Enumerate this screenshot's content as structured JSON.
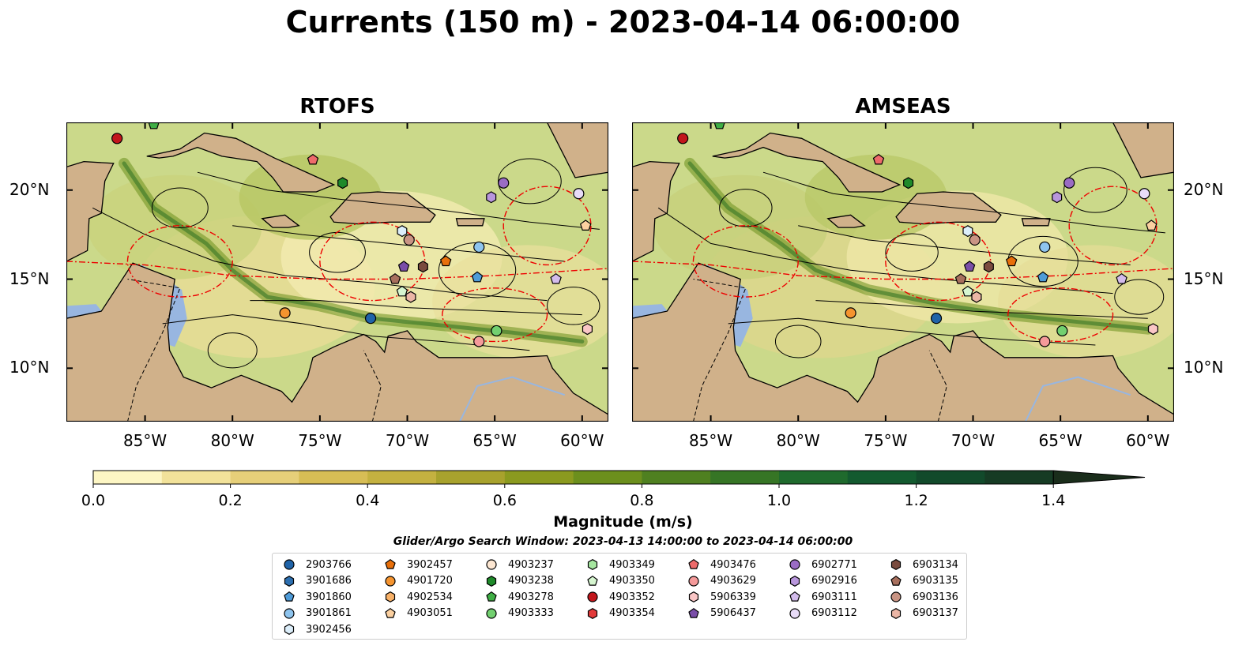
{
  "title": "Currents (150 m) - 2023-04-14 06:00:00",
  "panels": [
    {
      "title": "RTOFS"
    },
    {
      "title": "AMSEAS"
    }
  ],
  "axes": {
    "x_ticks": [
      "85°W",
      "80°W",
      "75°W",
      "70°W",
      "65°W",
      "60°W"
    ],
    "x_tick_values": [
      -85,
      -80,
      -75,
      -70,
      -65,
      -60
    ],
    "y_ticks": [
      "20°N",
      "15°N",
      "10°N"
    ],
    "y_tick_values": [
      20,
      15,
      10
    ],
    "xlim": [
      -89.5,
      -58.5
    ],
    "ylim": [
      7,
      23.8
    ]
  },
  "colorbar": {
    "label": "Magnitude (m/s)",
    "ticks": [
      "0.0",
      "0.2",
      "0.4",
      "0.6",
      "0.8",
      "1.0",
      "1.2",
      "1.4"
    ],
    "tick_values": [
      0.0,
      0.2,
      0.4,
      0.6,
      0.8,
      1.0,
      1.2,
      1.4
    ],
    "range": [
      0,
      1.5
    ],
    "extend": "max",
    "colors": [
      "#fdf6c4",
      "#f2e29a",
      "#e6cf79",
      "#d7bd55",
      "#c4b140",
      "#a8a22d",
      "#8b9a1f",
      "#6c8f1d",
      "#4f8020",
      "#367525",
      "#1f6a2d",
      "#135a2f",
      "#124a2b",
      "#163b24",
      "#1a2d1b"
    ]
  },
  "search_window": "Glider/Argo Search Window: 2023-04-13 14:00:00 to 2023-04-14 06:00:00",
  "legend": [
    {
      "id": "2903766",
      "marker": "circle",
      "color": "#1f63a8"
    },
    {
      "id": "3901686",
      "marker": "hexagon",
      "color": "#2c6fb0"
    },
    {
      "id": "3901860",
      "marker": "pentagon",
      "color": "#4e9bd8"
    },
    {
      "id": "3901861",
      "marker": "circle",
      "color": "#8ec4ee"
    },
    {
      "id": "3902456",
      "marker": "hexagon",
      "color": "#dceefa"
    },
    {
      "id": "3902457",
      "marker": "pentagon",
      "color": "#e86f0a"
    },
    {
      "id": "4901720",
      "marker": "circle",
      "color": "#f5942f"
    },
    {
      "id": "4902534",
      "marker": "hexagon",
      "color": "#f8b168"
    },
    {
      "id": "4903051",
      "marker": "pentagon",
      "color": "#fbd0a0"
    },
    {
      "id": "4903237",
      "marker": "circle",
      "color": "#fde7d2"
    },
    {
      "id": "4903238",
      "marker": "hexagon",
      "color": "#1e8a2a"
    },
    {
      "id": "4903278",
      "marker": "pentagon",
      "color": "#3fae45"
    },
    {
      "id": "4903333",
      "marker": "circle",
      "color": "#72d070"
    },
    {
      "id": "4903349",
      "marker": "hexagon",
      "color": "#a6e6a0"
    },
    {
      "id": "4903350",
      "marker": "pentagon",
      "color": "#d6f6d0"
    },
    {
      "id": "4903352",
      "marker": "circle",
      "color": "#c2161c"
    },
    {
      "id": "4903354",
      "marker": "hexagon",
      "color": "#e23a3a"
    },
    {
      "id": "4903476",
      "marker": "pentagon",
      "color": "#ee6b6b"
    },
    {
      "id": "4903629",
      "marker": "circle",
      "color": "#f59a9a"
    },
    {
      "id": "5906339",
      "marker": "hexagon",
      "color": "#fac6c6"
    },
    {
      "id": "5906437",
      "marker": "pentagon",
      "color": "#7a4ea8"
    },
    {
      "id": "6902771",
      "marker": "circle",
      "color": "#9a6cc4"
    },
    {
      "id": "6902916",
      "marker": "hexagon",
      "color": "#b896dc"
    },
    {
      "id": "6903111",
      "marker": "pentagon",
      "color": "#d3bcec"
    },
    {
      "id": "6903112",
      "marker": "circle",
      "color": "#e8dcf8"
    },
    {
      "id": "6903134",
      "marker": "hexagon",
      "color": "#7a4b3e"
    },
    {
      "id": "6903135",
      "marker": "pentagon",
      "color": "#a8705e"
    },
    {
      "id": "6903136",
      "marker": "circle",
      "color": "#c99484"
    },
    {
      "id": "6903137",
      "marker": "hexagon",
      "color": "#ebb6a6"
    }
  ],
  "chart_data": {
    "type": "scatter",
    "panels": [
      "RTOFS",
      "AMSEAS"
    ],
    "xlabel": "",
    "ylabel": "",
    "grid": false,
    "legend_position": "bottom",
    "points": [
      {
        "id": "2903766",
        "lon": -72.1,
        "lat": 12.8
      },
      {
        "id": "3901860",
        "lon": -66.0,
        "lat": 15.1
      },
      {
        "id": "3901861",
        "lon": -65.9,
        "lat": 16.8
      },
      {
        "id": "3902456",
        "lon": -70.3,
        "lat": 17.7
      },
      {
        "id": "3902457",
        "lon": -67.8,
        "lat": 16.0
      },
      {
        "id": "4901720",
        "lon": -77.0,
        "lat": 13.1
      },
      {
        "id": "4903051",
        "lon": -59.8,
        "lat": 18.0
      },
      {
        "id": "4903238",
        "lon": -73.7,
        "lat": 20.4
      },
      {
        "id": "4903278",
        "lon": -84.5,
        "lat": 23.7
      },
      {
        "id": "4903333",
        "lon": -64.9,
        "lat": 12.1
      },
      {
        "id": "4903350",
        "lon": -70.3,
        "lat": 14.3
      },
      {
        "id": "4903352",
        "lon": -86.6,
        "lat": 22.9
      },
      {
        "id": "4903476",
        "lon": -75.4,
        "lat": 21.7
      },
      {
        "id": "4903629",
        "lon": -65.9,
        "lat": 11.5
      },
      {
        "id": "5906339",
        "lon": -59.7,
        "lat": 12.2
      },
      {
        "id": "5906437",
        "lon": -70.2,
        "lat": 15.7
      },
      {
        "id": "6902771",
        "lon": -64.5,
        "lat": 20.4
      },
      {
        "id": "6902916",
        "lon": -65.2,
        "lat": 19.6
      },
      {
        "id": "6903111",
        "lon": -61.5,
        "lat": 15.0
      },
      {
        "id": "6903112",
        "lon": -60.2,
        "lat": 19.8
      },
      {
        "id": "6903134",
        "lon": -69.1,
        "lat": 15.7
      },
      {
        "id": "6903135",
        "lon": -70.7,
        "lat": 15.0
      },
      {
        "id": "6903136",
        "lon": -69.9,
        "lat": 17.2
      },
      {
        "id": "6903137",
        "lon": -69.8,
        "lat": 14.0
      }
    ]
  }
}
